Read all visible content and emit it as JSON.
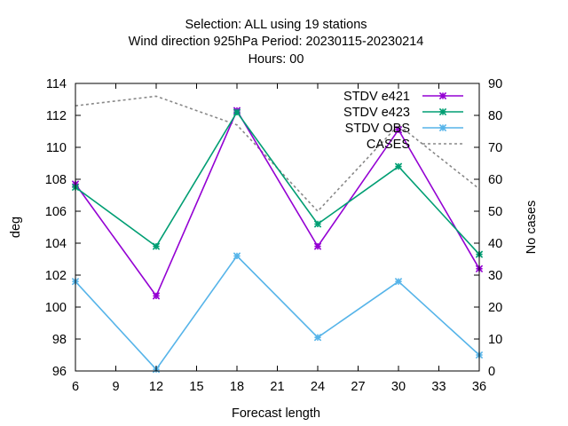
{
  "chart_data": {
    "type": "line",
    "title_lines": [
      "Selection: ALL using    19 stations",
      "Wind direction 925hPa   Period: 20230115-20230214",
      "Hours:  00"
    ],
    "xlabel": "Forecast length",
    "ylabel": "deg",
    "y2label": "No cases",
    "x_ticks": [
      6,
      9,
      12,
      15,
      18,
      21,
      24,
      27,
      30,
      33,
      36
    ],
    "y_ticks": [
      96,
      98,
      100,
      102,
      104,
      106,
      108,
      110,
      112,
      114
    ],
    "y2_ticks": [
      0,
      10,
      20,
      30,
      40,
      50,
      60,
      70,
      80,
      90
    ],
    "xlim": [
      6,
      36
    ],
    "ylim": [
      96,
      114
    ],
    "y2lim": [
      0,
      90
    ],
    "legend_position": "top-right",
    "x": [
      6,
      12,
      18,
      24,
      30,
      36
    ],
    "series": [
      {
        "name": "STDV e421",
        "axis": "y",
        "color": "#9400d3",
        "style": "solid",
        "marker": "x",
        "values": [
          107.7,
          100.7,
          112.3,
          103.8,
          111.1,
          102.4
        ]
      },
      {
        "name": "STDV e423",
        "axis": "y",
        "color": "#009e73",
        "style": "solid",
        "marker": "x",
        "values": [
          107.5,
          103.8,
          112.2,
          105.2,
          108.8,
          103.3
        ]
      },
      {
        "name": "STDV OBS",
        "axis": "y",
        "color": "#56b4e9",
        "style": "solid",
        "marker": "x",
        "values": [
          101.6,
          96.1,
          103.2,
          98.1,
          101.6,
          97.0
        ]
      },
      {
        "name": "CASES",
        "axis": "y2",
        "color": "#888888",
        "style": "dashed",
        "marker": "none",
        "values": [
          83,
          86,
          77,
          50,
          77,
          57
        ]
      }
    ]
  }
}
